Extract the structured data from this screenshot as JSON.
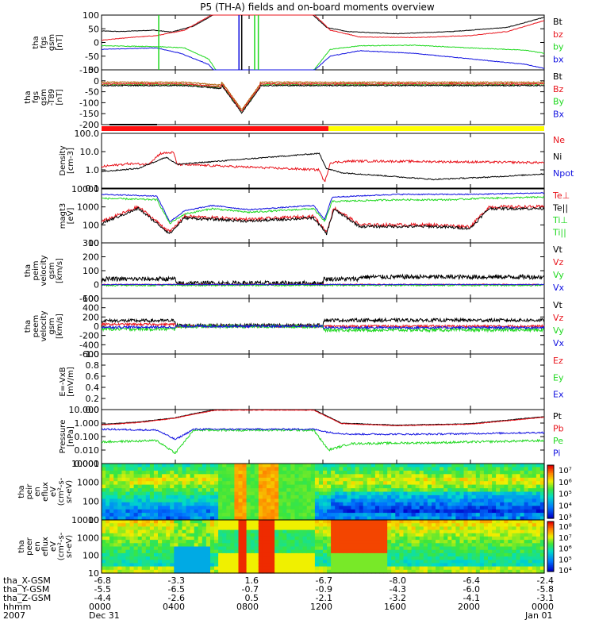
{
  "title": "P5 (TH-A) fields and on-board moments overview",
  "colors": {
    "black": "#000000",
    "red": "#e8141c",
    "green": "#1fd81f",
    "blue": "#1010e0",
    "yellow": "#ffff00",
    "orange": "#b05a00"
  },
  "panels": [
    {
      "id": "fgs",
      "ylabel": [
        "tha",
        "fgs",
        "gsm",
        "[nT]"
      ],
      "ticks": [
        "100",
        "50",
        "0",
        "-50",
        "-100"
      ],
      "legend": [
        {
          "t": "Bt",
          "c": "#000000"
        },
        {
          "t": "bz",
          "c": "#e8141c"
        },
        {
          "t": "by",
          "c": "#1fd81f"
        },
        {
          "t": "bx",
          "c": "#1010e0"
        }
      ]
    },
    {
      "id": "fgs_t89",
      "ylabel": [
        "tha",
        "fgs",
        "gsm",
        "-T89",
        "[nT]"
      ],
      "ticks": [
        "50",
        "0",
        "-50",
        "-100",
        "-150",
        "-200"
      ],
      "legend": [
        {
          "t": "Bt",
          "c": "#000000"
        },
        {
          "t": "Bz",
          "c": "#e8141c"
        },
        {
          "t": "By",
          "c": "#1fd81f"
        },
        {
          "t": "Bx",
          "c": "#1010e0"
        }
      ]
    },
    {
      "id": "density",
      "ylabel": [
        "Density",
        "[cm-3]"
      ],
      "ticks": [
        "100.0",
        "10.0",
        "1.0",
        "0.1"
      ],
      "legend": [
        {
          "t": "Ne",
          "c": "#e8141c"
        },
        {
          "t": "Ni",
          "c": "#000000"
        },
        {
          "t": "Npot",
          "c": "#1010e0"
        }
      ]
    },
    {
      "id": "temp",
      "ylabel": [
        "magt3",
        "[eV]"
      ],
      "ticks": [
        "10000",
        "1000",
        "100",
        "10"
      ],
      "legend": [
        {
          "t": "Te⊥",
          "c": "#e8141c"
        },
        {
          "t": "Te||",
          "c": "#000000"
        },
        {
          "t": "Ti⊥",
          "c": "#1fd81f"
        },
        {
          "t": "Ti||",
          "c": "#1fd81f"
        }
      ]
    },
    {
      "id": "peim",
      "ylabel": [
        "tha",
        "peim",
        "velocity",
        "gsm",
        "[km/s]"
      ],
      "ticks": [
        "300",
        "200",
        "100",
        "0",
        "-100"
      ],
      "legend": [
        {
          "t": "Vt",
          "c": "#000000"
        },
        {
          "t": "Vz",
          "c": "#e8141c"
        },
        {
          "t": "Vy",
          "c": "#1fd81f"
        },
        {
          "t": "Vx",
          "c": "#1010e0"
        }
      ]
    },
    {
      "id": "peem",
      "ylabel": [
        "tha",
        "peem",
        "velocity",
        "gsm",
        "[km/s]"
      ],
      "ticks": [
        "600",
        "400",
        "200",
        "0",
        "-200",
        "-400",
        "-600"
      ],
      "legend": [
        {
          "t": "Vt",
          "c": "#000000"
        },
        {
          "t": "Vz",
          "c": "#e8141c"
        },
        {
          "t": "Vy",
          "c": "#1fd81f"
        },
        {
          "t": "Vx",
          "c": "#1010e0"
        }
      ]
    },
    {
      "id": "efield",
      "ylabel": [
        "E=-VxB",
        "[mV/m]"
      ],
      "ticks": [
        "1.0",
        "0.8",
        "0.6",
        "0.4",
        "0.2",
        "0.0"
      ],
      "legend": [
        {
          "t": "Ez",
          "c": "#e8141c"
        },
        {
          "t": "Ey",
          "c": "#1fd81f"
        },
        {
          "t": "Ex",
          "c": "#1010e0"
        }
      ]
    },
    {
      "id": "pressure",
      "ylabel": [
        "Pressure",
        "[nPa]"
      ],
      "ticks": [
        "10.000",
        "1.000",
        "0.100",
        "0.010",
        "0.001"
      ],
      "legend": [
        {
          "t": "Pt",
          "c": "#000000"
        },
        {
          "t": "Pb",
          "c": "#e8141c"
        },
        {
          "t": "Pe",
          "c": "#1fd81f"
        },
        {
          "t": "Pi",
          "c": "#1010e0"
        }
      ]
    },
    {
      "id": "peir",
      "ylabel": [
        "tha",
        "peir",
        "en",
        "eflux",
        "eV",
        "(cm²-s-",
        "sr-eV)"
      ],
      "ticks": [
        "10000",
        "1000",
        "100",
        "10"
      ],
      "cbar": [
        "10⁷",
        "10⁶",
        "10⁵",
        "10⁴",
        "10³"
      ]
    },
    {
      "id": "peer",
      "ylabel": [
        "tha",
        "peer",
        "en",
        "eflux",
        "eV",
        "(cm²-s-",
        "sr-eV)"
      ],
      "ticks": [
        "10000",
        "1000",
        "100",
        "10"
      ],
      "cbar": [
        "10⁸",
        "10⁷",
        "10⁶",
        "10⁵",
        "10⁴"
      ]
    }
  ],
  "xaxis": {
    "rows": [
      {
        "label": "tha_X-GSM",
        "vals": [
          "-6.8",
          "-3.3",
          "1.6",
          "-6.7",
          "-8.0",
          "-6.4",
          "-2.4"
        ]
      },
      {
        "label": "tha_Y-GSM",
        "vals": [
          "-5.5",
          "-6.5",
          "-0.7",
          "-0.9",
          "-4.3",
          "-6.0",
          "-5.8"
        ]
      },
      {
        "label": "tha_Z-GSM",
        "vals": [
          "-4.4",
          "-2.6",
          "0.5",
          "-2.1",
          "-3.2",
          "-4.1",
          "-3.1"
        ]
      },
      {
        "label": "hhmm",
        "vals": [
          "0000",
          "0400",
          "0800",
          "1200",
          "1600",
          "2000",
          "0000"
        ]
      }
    ],
    "year": "2007",
    "date_start": "Dec 31",
    "date_end": "Jan 01"
  },
  "chart_data": {
    "type": "line",
    "title": "P5 (TH-A) fields and on-board moments overview",
    "x_hours": [
      0,
      4,
      8,
      12,
      16,
      20,
      24
    ],
    "series": [
      {
        "name": "Bt",
        "panel": "fgs",
        "x": [
          0,
          2,
          3.5,
          5,
          6.5,
          11.5,
          13,
          16,
          20,
          24
        ],
        "values": [
          40,
          35,
          35,
          50,
          120,
          120,
          40,
          30,
          40,
          90
        ]
      },
      {
        "name": "bz",
        "panel": "fgs",
        "x": [
          0,
          2,
          3.5,
          5,
          6.5,
          11.5,
          13,
          16,
          20,
          24
        ],
        "values": [
          10,
          12,
          18,
          30,
          100,
          100,
          25,
          20,
          25,
          80
        ]
      },
      {
        "name": "by",
        "panel": "fgs",
        "x": [
          0,
          2,
          3.5,
          5,
          6.5,
          11.5,
          13,
          16,
          20,
          24
        ],
        "values": [
          -12,
          -15,
          -20,
          -30,
          -100,
          -100,
          -20,
          -12,
          -20,
          -35
        ]
      },
      {
        "name": "bx",
        "panel": "fgs",
        "x": [
          0,
          2,
          3.5,
          5,
          6.5,
          11.5,
          13,
          16,
          20,
          24
        ],
        "values": [
          -25,
          -20,
          -30,
          -50,
          -100,
          -100,
          -30,
          -35,
          -60,
          -90
        ]
      },
      {
        "name": "Ne",
        "panel": "density",
        "x": [
          0,
          2,
          3.7,
          4,
          12,
          12.4,
          13,
          16,
          20,
          24
        ],
        "values": [
          1.5,
          2,
          8,
          2,
          1,
          0.3,
          3,
          3,
          3,
          2.5
        ]
      },
      {
        "name": "Ni",
        "panel": "density",
        "x": [
          0,
          2,
          3.7,
          4,
          12,
          12.4,
          13,
          16,
          20,
          24
        ],
        "values": [
          0.8,
          1,
          5,
          2,
          8,
          1.5,
          0.6,
          0.3,
          0.4,
          0.6
        ]
      }
    ],
    "ylim": {
      "fgs": [
        -100,
        100
      ],
      "density": [
        0.1,
        100
      ],
      "temp": [
        10,
        10000
      ],
      "pressure": [
        0.001,
        10
      ]
    },
    "log_y": [
      "density",
      "temp",
      "pressure",
      "peir",
      "peer"
    ]
  }
}
